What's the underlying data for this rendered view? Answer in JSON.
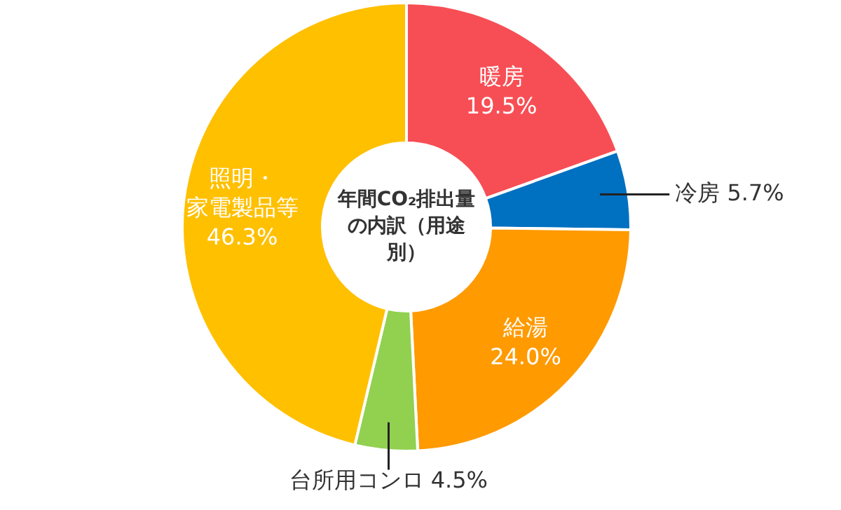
{
  "chart_data": {
    "type": "donut",
    "title": "年間CO₂排出量の内訳（用途別）",
    "categories": [
      "暖房",
      "冷房",
      "給湯",
      "台所用コンロ",
      "照明・家電製品等"
    ],
    "values": [
      19.5,
      5.7,
      24.0,
      4.5,
      46.3
    ],
    "colors": [
      "#f74e55",
      "#0070c0",
      "#ff9a00",
      "#92d050",
      "#ffc000"
    ],
    "value_labels": [
      "19.5%",
      "5.7%",
      "24.0%",
      "4.5%",
      "46.3%"
    ]
  }
}
